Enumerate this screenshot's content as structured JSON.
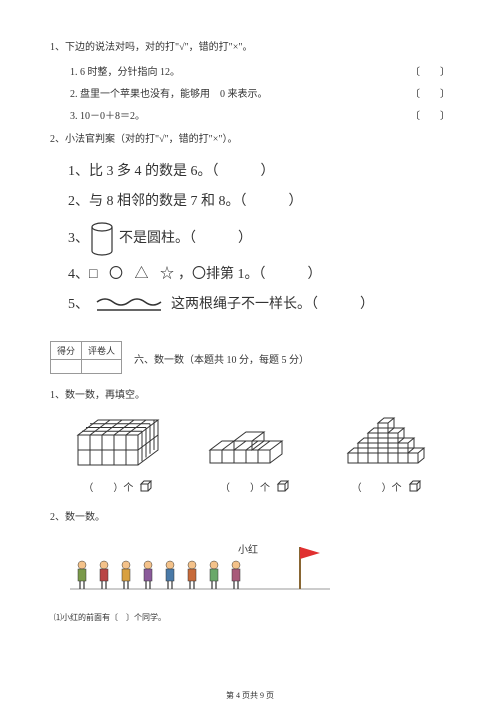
{
  "q1": {
    "title": "1、下边的说法对吗，对的打\"√\"，错的打\"×\"。",
    "items": [
      {
        "num": "1.",
        "text": "6 时整，分针指向 12。",
        "bracket": "〔　　〕"
      },
      {
        "num": "2.",
        "text": "盘里一个苹果也没有，能够用　0 来表示。",
        "bracket": "〔　　〕"
      },
      {
        "num": "3.",
        "text": "10－0＋8＝2。",
        "bracket": "〔　　〕"
      }
    ]
  },
  "q2": {
    "title": "2、小法官判案（对的打\"√\"，错的打\"×\"）。",
    "items": [
      {
        "num": "1、",
        "text": "比 3 多 4 的数是 6。（　　　）"
      },
      {
        "num": "2、",
        "text": "与 8 相邻的数是 7 和 8。（　　　）"
      },
      {
        "num": "3、",
        "text_after": "不是圆柱。（　　　）"
      },
      {
        "num": "4、",
        "text_after": "，〇排第 1。（　　　）"
      },
      {
        "num": "5、",
        "text_after": "这两根绳子不一样长。（　　　）"
      }
    ]
  },
  "score": {
    "header1": "得分",
    "header2": "评卷人"
  },
  "section6": "六、数一数（本题共 10 分，每题 5 分）",
  "count1": {
    "title": "1、数一数，再填空。",
    "label": "（　　）个"
  },
  "count2": {
    "title": "2、数一数。"
  },
  "xiaohong": "小红",
  "footer": "⑴小红的前面有〔　〕个同学。",
  "pagenum": "第 4 页共 9 页",
  "colors": {
    "line": "#555555",
    "flag": "#e03030",
    "people": [
      "#7a9a4a",
      "#b94545",
      "#d8a040",
      "#8a5a9a",
      "#4a7aa8",
      "#c76a3a",
      "#6aa86a",
      "#a85a7a"
    ]
  }
}
